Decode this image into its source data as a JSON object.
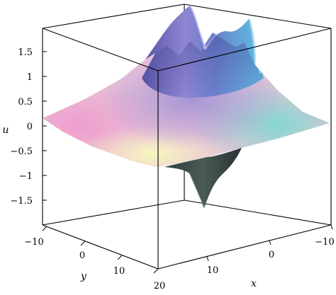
{
  "chart_data": {
    "type": "surface3d",
    "title": "",
    "x_axis": {
      "label": "x",
      "range": [
        -10,
        20
      ],
      "ticks": [
        "20",
        "10",
        "0",
        "−10"
      ]
    },
    "y_axis": {
      "label": "y",
      "range": [
        -10,
        20
      ],
      "ticks": [
        "−10",
        "0",
        "10",
        "20"
      ]
    },
    "z_axis": {
      "label": "u",
      "range": [
        -2,
        2
      ],
      "ticks": [
        "1.5",
        "1",
        "0.5",
        "0",
        "−0.5",
        "−1",
        "−1.5"
      ]
    },
    "surface": {
      "base_level": 0,
      "colormap": "rainbow-pastel",
      "features": [
        {
          "kind": "peak",
          "value": 1.95,
          "note": "upper left crest"
        },
        {
          "kind": "peak",
          "value": 1.8,
          "note": "upper right crest"
        },
        {
          "kind": "trough",
          "value": -1.6,
          "note": "lower dip"
        }
      ]
    },
    "grid": false,
    "legend": "none"
  },
  "colors": {
    "pink": "#e7a1cc",
    "purple": "#8e7fc9",
    "blue": "#6f9fdd",
    "cyan": "#8fdad0",
    "yellow": "#f1f1b8",
    "dark": "#2e3340"
  }
}
